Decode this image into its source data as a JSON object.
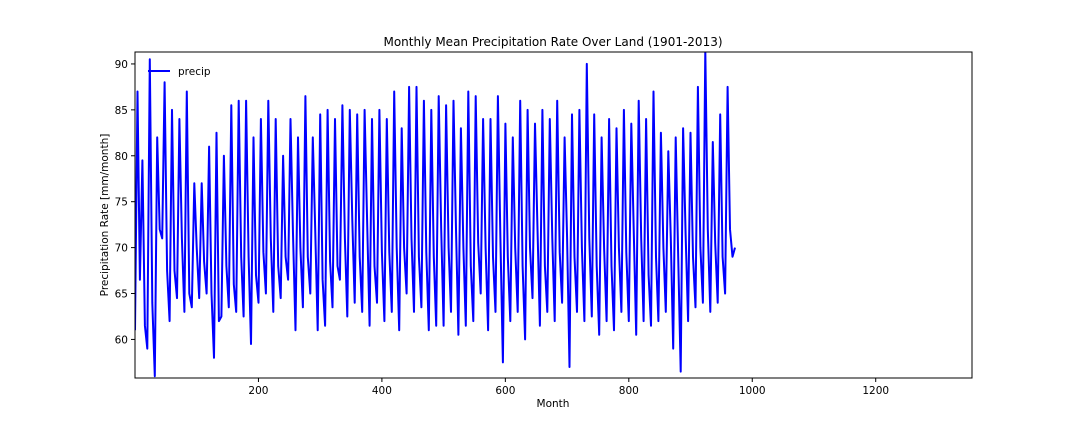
{
  "chart_data": {
    "type": "line",
    "title": "Monthly Mean Precipitation Rate Over Land (1901-2013)",
    "xlabel": "Month",
    "ylabel": "Precipitation Rate [mm/month]",
    "xlim": [
      0,
      1356
    ],
    "ylim": [
      55.8,
      91.3
    ],
    "x_ticks": [
      200,
      400,
      600,
      800,
      1000,
      1200
    ],
    "y_ticks": [
      60,
      65,
      70,
      75,
      80,
      85,
      90
    ],
    "grid": false,
    "legend_position": "top-left",
    "color": "#0000ff",
    "series": [
      {
        "name": "precip",
        "sample_every": 4,
        "values": [
          61.0,
          87.0,
          66.5,
          79.5,
          61.5,
          59.0,
          90.5,
          64.0,
          56.0,
          82.0,
          72.0,
          71.0,
          88.0,
          67.5,
          62.0,
          85.0,
          67.5,
          64.5,
          84.0,
          71.0,
          63.0,
          87.0,
          65.0,
          63.5,
          77.0,
          70.0,
          64.5,
          77.0,
          68.5,
          65.0,
          81.0,
          65.0,
          58.0,
          82.5,
          62.0,
          62.5,
          80.0,
          68.0,
          63.5,
          85.5,
          66.0,
          63.0,
          86.0,
          69.0,
          62.5,
          86.0,
          69.0,
          59.5,
          82.0,
          67.0,
          64.0,
          84.0,
          69.5,
          65.0,
          86.0,
          71.0,
          63.0,
          84.0,
          68.0,
          64.5,
          80.0,
          69.0,
          66.5,
          84.0,
          71.5,
          61.0,
          82.0,
          70.0,
          63.5,
          86.5,
          69.0,
          65.0,
          82.0,
          72.0,
          61.0,
          84.5,
          66.5,
          61.5,
          85.0,
          68.5,
          63.5,
          84.0,
          68.0,
          66.5,
          85.5,
          71.0,
          62.5,
          85.0,
          73.0,
          64.0,
          84.5,
          69.0,
          63.0,
          85.0,
          73.0,
          61.5,
          84.0,
          68.0,
          64.0,
          85.0,
          69.5,
          62.0,
          84.0,
          69.5,
          63.0,
          87.0,
          70.0,
          61.0,
          83.0,
          70.0,
          65.0,
          87.5,
          71.0,
          63.0,
          87.5,
          69.0,
          63.5,
          86.0,
          69.5,
          61.0,
          85.0,
          69.0,
          61.5,
          86.5,
          72.0,
          61.5,
          85.5,
          70.0,
          63.0,
          86.0,
          72.0,
          60.5,
          83.0,
          70.0,
          61.5,
          87.0,
          68.0,
          62.0,
          86.5,
          70.5,
          65.0,
          84.0,
          70.0,
          61.0,
          84.0,
          69.0,
          63.0,
          86.5,
          71.0,
          57.5,
          83.5,
          69.0,
          62.0,
          82.0,
          70.0,
          63.0,
          86.0,
          68.0,
          60.0,
          85.0,
          70.0,
          64.5,
          83.5,
          72.0,
          61.5,
          85.0,
          68.0,
          63.0,
          84.0,
          71.0,
          62.0,
          86.0,
          69.5,
          64.0,
          82.0,
          71.0,
          57.0,
          84.5,
          69.0,
          63.0,
          85.0,
          70.0,
          62.0,
          90.0,
          71.0,
          62.5,
          84.5,
          68.0,
          60.5,
          82.0,
          70.0,
          62.0,
          84.0,
          68.0,
          61.0,
          83.0,
          70.0,
          63.0,
          85.0,
          69.5,
          62.0,
          83.5,
          72.0,
          60.5,
          86.0,
          71.0,
          62.0,
          84.0,
          67.0,
          61.5,
          87.0,
          69.0,
          62.0,
          82.5,
          70.0,
          63.0,
          80.5,
          71.0,
          59.0,
          82.0,
          69.0,
          56.5,
          83.0,
          71.5,
          62.0,
          82.5,
          69.0,
          63.5,
          87.5,
          70.0,
          64.0,
          91.5,
          72.0,
          63.0,
          81.5,
          70.5,
          64.0,
          84.5,
          69.0,
          65.0,
          87.5,
          72.0,
          69.0,
          70.0
        ]
      }
    ]
  }
}
